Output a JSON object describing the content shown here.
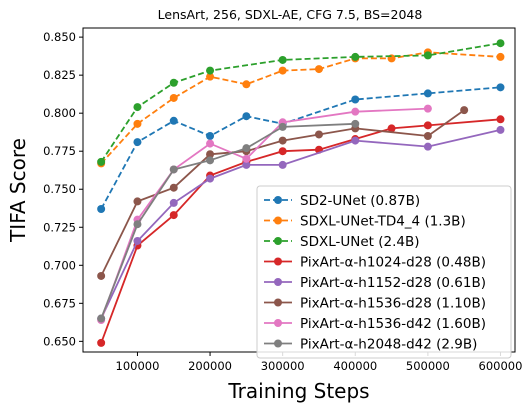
{
  "chart_data": {
    "type": "line",
    "title": "LensArt, 256, SDXL-AE, CFG 7.5, BS=2048",
    "xlabel": "Training Steps",
    "ylabel": "TIFA Score",
    "xlim": [
      25000,
      620000
    ],
    "ylim": [
      0.643,
      0.856
    ],
    "xticks": [
      100000,
      200000,
      300000,
      400000,
      500000,
      600000
    ],
    "xtick_labels": [
      "100000",
      "200000",
      "300000",
      "400000",
      "500000",
      "600000"
    ],
    "yticks": [
      0.65,
      0.675,
      0.7,
      0.725,
      0.75,
      0.775,
      0.8,
      0.825,
      0.85
    ],
    "ytick_labels": [
      "0.650",
      "0.675",
      "0.700",
      "0.725",
      "0.750",
      "0.775",
      "0.800",
      "0.825",
      "0.850"
    ],
    "grid": false,
    "legend_position": "lower-right",
    "series": [
      {
        "name": "SD2-UNet (0.87B)",
        "color": "#1f77b4",
        "dashed": true,
        "x": [
          50000,
          100000,
          150000,
          200000,
          250000,
          300000,
          400000,
          500000,
          600000
        ],
        "values": [
          0.737,
          0.781,
          0.795,
          0.785,
          0.798,
          0.793,
          0.809,
          0.813,
          0.817
        ]
      },
      {
        "name": "SDXL-UNet-TD4_4 (1.3B)",
        "color": "#ff7f0e",
        "dashed": true,
        "x": [
          50000,
          100000,
          150000,
          200000,
          250000,
          300000,
          350000,
          400000,
          450000,
          500000,
          600000
        ],
        "values": [
          0.767,
          0.793,
          0.81,
          0.824,
          0.819,
          0.828,
          0.829,
          0.836,
          0.836,
          0.84,
          0.837
        ]
      },
      {
        "name": "SDXL-UNet (2.4B)",
        "color": "#2ca02c",
        "dashed": true,
        "x": [
          50000,
          100000,
          150000,
          200000,
          300000,
          400000,
          500000,
          600000
        ],
        "values": [
          0.768,
          0.804,
          0.82,
          0.828,
          0.835,
          0.837,
          0.838,
          0.846
        ]
      },
      {
        "name": "PixArt-α-h1024-d28 (0.48B)",
        "color": "#d62728",
        "dashed": false,
        "x": [
          50000,
          100000,
          150000,
          200000,
          250000,
          300000,
          350000,
          400000,
          450000,
          500000,
          600000
        ],
        "values": [
          0.649,
          0.713,
          0.733,
          0.759,
          0.768,
          0.775,
          0.776,
          0.783,
          0.79,
          0.792,
          0.796
        ]
      },
      {
        "name": "PixArt-α-h1152-d28 (0.61B)",
        "color": "#9467bd",
        "dashed": false,
        "x": [
          50000,
          100000,
          150000,
          200000,
          250000,
          300000,
          400000,
          500000,
          600000
        ],
        "values": [
          0.665,
          0.716,
          0.741,
          0.757,
          0.766,
          0.766,
          0.782,
          0.778,
          0.789
        ]
      },
      {
        "name": "PixArt-α-h1536-d28 (1.10B)",
        "color": "#8c564b",
        "dashed": false,
        "x": [
          50000,
          100000,
          150000,
          200000,
          250000,
          300000,
          350000,
          400000,
          500000,
          550000
        ],
        "values": [
          0.693,
          0.742,
          0.751,
          0.773,
          0.775,
          0.782,
          0.786,
          0.79,
          0.785,
          0.802
        ]
      },
      {
        "name": "PixArt-α-h1536-d42 (1.60B)",
        "color": "#e377c2",
        "dashed": false,
        "x": [
          50000,
          100000,
          150000,
          200000,
          250000,
          300000,
          400000,
          500000
        ],
        "values": [
          0.664,
          0.73,
          0.763,
          0.78,
          0.77,
          0.794,
          0.801,
          0.803
        ]
      },
      {
        "name": "PixArt-α-h2048-d42 (2.9B)",
        "color": "#7f7f7f",
        "dashed": false,
        "x": [
          50000,
          100000,
          150000,
          200000,
          250000,
          300000,
          400000
        ],
        "values": [
          0.665,
          0.727,
          0.763,
          0.769,
          0.777,
          0.791,
          0.793
        ]
      }
    ]
  }
}
